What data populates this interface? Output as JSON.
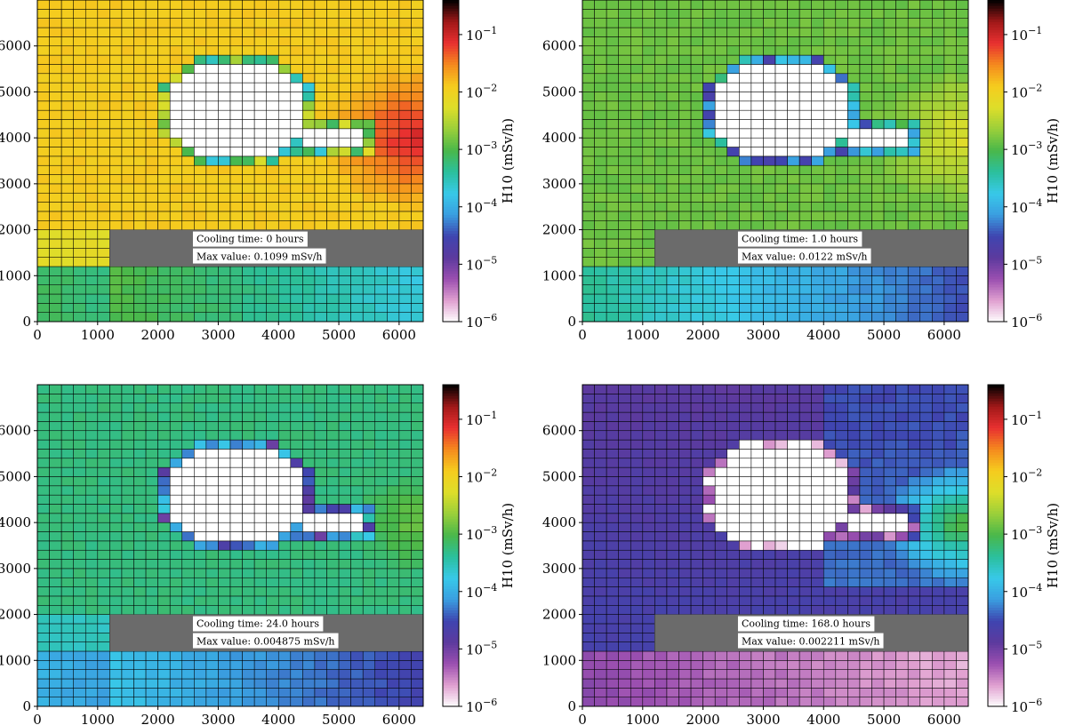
{
  "chart_data": [
    {
      "type": "heatmap",
      "panel": "top-left",
      "log_scale_exponent": -1.75,
      "annotation": {
        "cooling_label": "Cooling time: 0 hours",
        "max_label": "Max value: 0.1099 mSv/h"
      },
      "colorbar_label": "H10 (mSv/h)",
      "colorbar_ticks": [
        "10",
        "10",
        "10",
        "10",
        "10",
        "10"
      ],
      "colorbar_exponents": [
        "−1",
        "−2",
        "−3",
        "−4",
        "−5",
        "−6"
      ],
      "x_ticks": [
        "0",
        "1000",
        "2000",
        "3000",
        "4000",
        "5000",
        "6000"
      ],
      "y_ticks": [
        "0",
        "1000",
        "2000",
        "3000",
        "4000",
        "5000",
        "6000"
      ],
      "xlim": [
        0,
        6400
      ],
      "ylim": [
        0,
        7000
      ],
      "color_scale": {
        "min": 1e-06,
        "max": 0.4,
        "log": true
      }
    },
    {
      "type": "heatmap",
      "panel": "top-right",
      "log_scale_exponent": -2.9,
      "annotation": {
        "cooling_label": "Cooling time: 1.0 hours",
        "max_label": "Max value: 0.0122 mSv/h"
      },
      "colorbar_label": "H10 (mSv/h)",
      "colorbar_ticks": [
        "10",
        "10",
        "10",
        "10",
        "10",
        "10"
      ],
      "colorbar_exponents": [
        "−1",
        "−2",
        "−3",
        "−4",
        "−5",
        "−6"
      ],
      "x_ticks": [
        "0",
        "1000",
        "2000",
        "3000",
        "4000",
        "5000",
        "6000"
      ],
      "y_ticks": [
        "0",
        "1000",
        "2000",
        "3000",
        "4000",
        "5000",
        "6000"
      ],
      "xlim": [
        0,
        6400
      ],
      "ylim": [
        0,
        7000
      ],
      "color_scale": {
        "min": 1e-06,
        "max": 0.4,
        "log": true
      }
    },
    {
      "type": "heatmap",
      "panel": "bottom-left",
      "log_scale_exponent": -3.2,
      "annotation": {
        "cooling_label": "Cooling time: 24.0 hours",
        "max_label": "Max value: 0.004875 mSv/h"
      },
      "colorbar_label": "H10 (mSv/h)",
      "colorbar_ticks": [
        "10",
        "10",
        "10",
        "10",
        "10",
        "10"
      ],
      "colorbar_exponents": [
        "−1",
        "−2",
        "−3",
        "−4",
        "−5",
        "−6"
      ],
      "x_ticks": [
        "0",
        "1000",
        "2000",
        "3000",
        "4000",
        "5000",
        "6000"
      ],
      "y_ticks": [
        "0",
        "1000",
        "2000",
        "3000",
        "4000",
        "5000",
        "6000"
      ],
      "xlim": [
        0,
        6400
      ],
      "ylim": [
        0,
        7000
      ],
      "color_scale": {
        "min": 1e-06,
        "max": 0.4,
        "log": true
      }
    },
    {
      "type": "heatmap",
      "panel": "bottom-right",
      "log_scale_exponent": -4.6,
      "annotation": {
        "cooling_label": "Cooling time: 168.0 hours",
        "max_label": "Max value: 0.002211 mSv/h"
      },
      "colorbar_label": "H10 (mSv/h)",
      "colorbar_ticks": [
        "10",
        "10",
        "10",
        "10",
        "10",
        "10"
      ],
      "colorbar_exponents": [
        "−1",
        "−2",
        "−3",
        "−4",
        "−5",
        "−6"
      ],
      "x_ticks": [
        "0",
        "1000",
        "2000",
        "3000",
        "4000",
        "5000",
        "6000"
      ],
      "y_ticks": [
        "0",
        "1000",
        "2000",
        "3000",
        "4000",
        "5000",
        "6000"
      ],
      "xlim": [
        0,
        6400
      ],
      "ylim": [
        0,
        7000
      ],
      "color_scale": {
        "min": 1e-06,
        "max": 0.4,
        "log": true
      }
    }
  ],
  "colors": {
    "shield_gray": "#6b6b6b",
    "grid_line": "#000000",
    "colormap": [
      "#ffffff",
      "#e0a0d0",
      "#9b4fb0",
      "#5c3a9e",
      "#3f45b0",
      "#3a9ee0",
      "#38c9e8",
      "#2bbf9c",
      "#4ab84a",
      "#9bcf3a",
      "#dede2a",
      "#f5cc1e",
      "#f58a1e",
      "#e83030",
      "#a01818",
      "#000000"
    ]
  }
}
